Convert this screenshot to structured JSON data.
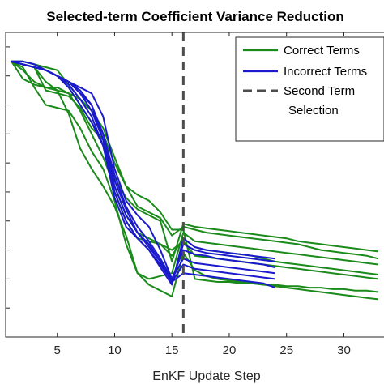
{
  "chart_data": {
    "type": "line",
    "title": "Selected-term Coefficient Variance Reduction",
    "xlabel": "EnKF Update Step",
    "ylabel": "",
    "xlim": [
      0.5,
      33.5
    ],
    "ylim": [
      0,
      1.05
    ],
    "xticks": [
      5,
      10,
      15,
      20,
      25,
      30
    ],
    "yscale_labels_visible": false,
    "grid": false,
    "legend_placement": "top-right",
    "colors": {
      "correct": "#1a8a1a",
      "incorrect": "#1a1acc",
      "selection": "#4d4d4d"
    },
    "legend": [
      {
        "label": "Correct Terms",
        "style": "solid",
        "color": "#1a8a1a"
      },
      {
        "label": "Incorrect Terms",
        "style": "solid",
        "color": "#1a1acc"
      },
      {
        "label": "Second Term",
        "style": "dashed",
        "color": "#4d4d4d"
      },
      {
        "label": "Selection",
        "style": "none",
        "color": "#4d4d4d"
      }
    ],
    "vertical_line": {
      "x": 16,
      "label": "Second Term Selection"
    },
    "series": [
      {
        "group": "correct",
        "x": [
          1,
          2,
          3,
          4,
          5,
          6,
          7,
          8,
          9,
          10,
          11,
          12,
          13,
          14,
          15,
          16,
          17,
          18,
          19,
          20,
          21,
          22,
          23,
          24,
          25,
          26,
          27,
          28,
          29,
          30,
          31,
          32,
          33
        ],
        "values": [
          0.95,
          0.94,
          0.93,
          0.85,
          0.84,
          0.83,
          0.79,
          0.72,
          0.68,
          0.55,
          0.48,
          0.44,
          0.42,
          0.4,
          0.26,
          0.39,
          0.38,
          0.375,
          0.37,
          0.365,
          0.36,
          0.355,
          0.35,
          0.345,
          0.34,
          0.33,
          0.325,
          0.32,
          0.315,
          0.31,
          0.305,
          0.3,
          0.295
        ]
      },
      {
        "group": "correct",
        "x": [
          1,
          2,
          3,
          4,
          5,
          6,
          7,
          8,
          9,
          10,
          11,
          12,
          13,
          14,
          15,
          16,
          17,
          18,
          19,
          20,
          21,
          22,
          23,
          24,
          25,
          26,
          27,
          28,
          29,
          30,
          31,
          32,
          33
        ],
        "values": [
          0.95,
          0.95,
          0.94,
          0.93,
          0.92,
          0.87,
          0.82,
          0.78,
          0.72,
          0.62,
          0.52,
          0.45,
          0.43,
          0.41,
          0.35,
          0.38,
          0.37,
          0.36,
          0.355,
          0.35,
          0.345,
          0.34,
          0.335,
          0.33,
          0.325,
          0.32,
          0.31,
          0.3,
          0.295,
          0.29,
          0.285,
          0.28,
          0.27
        ]
      },
      {
        "group": "correct",
        "x": [
          1,
          2,
          3,
          4,
          5,
          6,
          7,
          8,
          9,
          10,
          11,
          12,
          13,
          14,
          15,
          16,
          17,
          18,
          19,
          20,
          21,
          22,
          23,
          24,
          25,
          26,
          27,
          28,
          29,
          30,
          31,
          32,
          33
        ],
        "values": [
          0.95,
          0.93,
          0.86,
          0.8,
          0.79,
          0.78,
          0.72,
          0.64,
          0.58,
          0.47,
          0.32,
          0.22,
          0.2,
          0.21,
          0.22,
          0.36,
          0.33,
          0.325,
          0.32,
          0.315,
          0.31,
          0.305,
          0.3,
          0.295,
          0.29,
          0.285,
          0.28,
          0.275,
          0.27,
          0.265,
          0.26,
          0.255,
          0.25
        ]
      },
      {
        "group": "correct",
        "x": [
          1,
          2,
          3,
          4,
          5,
          6,
          7,
          8,
          9,
          10,
          11,
          12,
          13,
          14,
          15,
          16,
          17,
          18,
          19,
          20,
          21,
          22,
          23,
          24,
          25,
          26,
          27,
          28,
          29,
          30,
          31,
          32,
          33
        ],
        "values": [
          0.95,
          0.95,
          0.94,
          0.92,
          0.9,
          0.86,
          0.8,
          0.74,
          0.66,
          0.5,
          0.4,
          0.34,
          0.33,
          0.32,
          0.28,
          0.34,
          0.31,
          0.3,
          0.295,
          0.29,
          0.285,
          0.28,
          0.27,
          0.26,
          0.255,
          0.25,
          0.245,
          0.24,
          0.235,
          0.23,
          0.225,
          0.22,
          0.215
        ]
      },
      {
        "group": "correct",
        "x": [
          1,
          2,
          3,
          4,
          5,
          6,
          7,
          8,
          9,
          10,
          11,
          12,
          13,
          14,
          15,
          16,
          17,
          18,
          19,
          20,
          21,
          22,
          23,
          24,
          25,
          26,
          27,
          28,
          29,
          30,
          31,
          32,
          33
        ],
        "values": [
          0.95,
          0.89,
          0.87,
          0.86,
          0.86,
          0.84,
          0.78,
          0.7,
          0.62,
          0.52,
          0.42,
          0.36,
          0.34,
          0.32,
          0.3,
          0.33,
          0.28,
          0.275,
          0.27,
          0.265,
          0.26,
          0.255,
          0.25,
          0.245,
          0.24,
          0.235,
          0.23,
          0.225,
          0.22,
          0.215,
          0.21,
          0.205,
          0.2
        ]
      },
      {
        "group": "correct",
        "x": [
          1,
          2,
          3,
          4,
          5,
          6,
          7,
          8,
          9,
          10,
          11,
          12,
          13,
          14,
          15,
          16,
          17,
          18,
          19,
          20,
          21,
          22,
          23,
          24,
          25,
          26,
          27,
          28,
          29,
          30,
          31,
          32,
          33
        ],
        "values": [
          0.95,
          0.94,
          0.93,
          0.88,
          0.85,
          0.84,
          0.82,
          0.78,
          0.7,
          0.6,
          0.52,
          0.49,
          0.47,
          0.43,
          0.37,
          0.37,
          0.2,
          0.195,
          0.19,
          0.19,
          0.185,
          0.185,
          0.18,
          0.18,
          0.175,
          0.175,
          0.17,
          0.17,
          0.165,
          0.165,
          0.16,
          0.16,
          0.155
        ]
      },
      {
        "group": "correct",
        "x": [
          1,
          2,
          3,
          4,
          5,
          6,
          7,
          8,
          9,
          10,
          11,
          12,
          13,
          14,
          15,
          16,
          17,
          18,
          19,
          20,
          21,
          22,
          23,
          24,
          25,
          26,
          27,
          28,
          29,
          30,
          31,
          32,
          33
        ],
        "values": [
          0.95,
          0.92,
          0.88,
          0.86,
          0.85,
          0.77,
          0.65,
          0.58,
          0.52,
          0.45,
          0.35,
          0.22,
          0.18,
          0.16,
          0.14,
          0.29,
          0.23,
          0.21,
          0.2,
          0.195,
          0.19,
          0.185,
          0.18,
          0.175,
          0.17,
          0.165,
          0.16,
          0.155,
          0.15,
          0.145,
          0.14,
          0.135,
          0.13
        ]
      },
      {
        "group": "incorrect",
        "x": [
          1,
          2,
          3,
          4,
          5,
          6,
          7,
          8,
          9,
          10,
          11,
          12,
          13,
          14,
          15,
          16,
          17,
          18,
          19,
          20,
          21,
          22,
          23,
          24
        ],
        "values": [
          0.95,
          0.94,
          0.93,
          0.92,
          0.9,
          0.86,
          0.8,
          0.74,
          0.66,
          0.48,
          0.38,
          0.34,
          0.3,
          0.24,
          0.18,
          0.34,
          0.31,
          0.3,
          0.295,
          0.29,
          0.285,
          0.28,
          0.275,
          0.27
        ]
      },
      {
        "group": "incorrect",
        "x": [
          1,
          2,
          3,
          4,
          5,
          6,
          7,
          8,
          9,
          10,
          11,
          12,
          13,
          14,
          15,
          16,
          17,
          18,
          19,
          20,
          21,
          22,
          23,
          24
        ],
        "values": [
          0.95,
          0.95,
          0.94,
          0.92,
          0.9,
          0.88,
          0.84,
          0.8,
          0.68,
          0.54,
          0.44,
          0.36,
          0.31,
          0.26,
          0.19,
          0.32,
          0.3,
          0.29,
          0.285,
          0.28,
          0.275,
          0.27,
          0.265,
          0.26
        ]
      },
      {
        "group": "incorrect",
        "x": [
          1,
          2,
          3,
          4,
          5,
          6,
          7,
          8,
          9,
          10,
          11,
          12,
          13,
          14,
          15,
          16,
          17,
          18,
          19,
          20,
          21,
          22,
          23,
          24
        ],
        "values": [
          0.95,
          0.94,
          0.93,
          0.92,
          0.9,
          0.88,
          0.86,
          0.84,
          0.76,
          0.58,
          0.47,
          0.42,
          0.38,
          0.3,
          0.2,
          0.3,
          0.285,
          0.28,
          0.27,
          0.265,
          0.26,
          0.255,
          0.25,
          0.24
        ]
      },
      {
        "group": "incorrect",
        "x": [
          1,
          2,
          3,
          4,
          5,
          6,
          7,
          8,
          9,
          10,
          11,
          12,
          13,
          14,
          15,
          16,
          17,
          18,
          19,
          20,
          21,
          22,
          23,
          24
        ],
        "values": [
          0.95,
          0.94,
          0.93,
          0.92,
          0.9,
          0.88,
          0.85,
          0.8,
          0.7,
          0.56,
          0.45,
          0.38,
          0.33,
          0.27,
          0.2,
          0.27,
          0.255,
          0.25,
          0.245,
          0.24,
          0.235,
          0.23,
          0.225,
          0.22
        ]
      },
      {
        "group": "incorrect",
        "x": [
          1,
          2,
          3,
          4,
          5,
          6,
          7,
          8,
          9,
          10,
          11,
          12,
          13,
          14,
          15,
          16,
          17,
          18,
          19,
          20,
          21,
          22,
          23,
          24
        ],
        "values": [
          0.95,
          0.94,
          0.93,
          0.92,
          0.9,
          0.88,
          0.84,
          0.78,
          0.68,
          0.52,
          0.42,
          0.36,
          0.32,
          0.26,
          0.19,
          0.25,
          0.235,
          0.23,
          0.225,
          0.22,
          0.215,
          0.21,
          0.205,
          0.2
        ]
      },
      {
        "group": "incorrect",
        "x": [
          1,
          2,
          3,
          4,
          5,
          6,
          7,
          8,
          9,
          10,
          11,
          12,
          13,
          14,
          15,
          16,
          17,
          18,
          19,
          20,
          21,
          22,
          23,
          24
        ],
        "values": [
          0.95,
          0.94,
          0.93,
          0.92,
          0.9,
          0.87,
          0.82,
          0.76,
          0.66,
          0.5,
          0.4,
          0.34,
          0.3,
          0.25,
          0.19,
          0.22,
          0.215,
          0.21,
          0.205,
          0.2,
          0.195,
          0.19,
          0.185,
          0.17
        ]
      }
    ]
  }
}
